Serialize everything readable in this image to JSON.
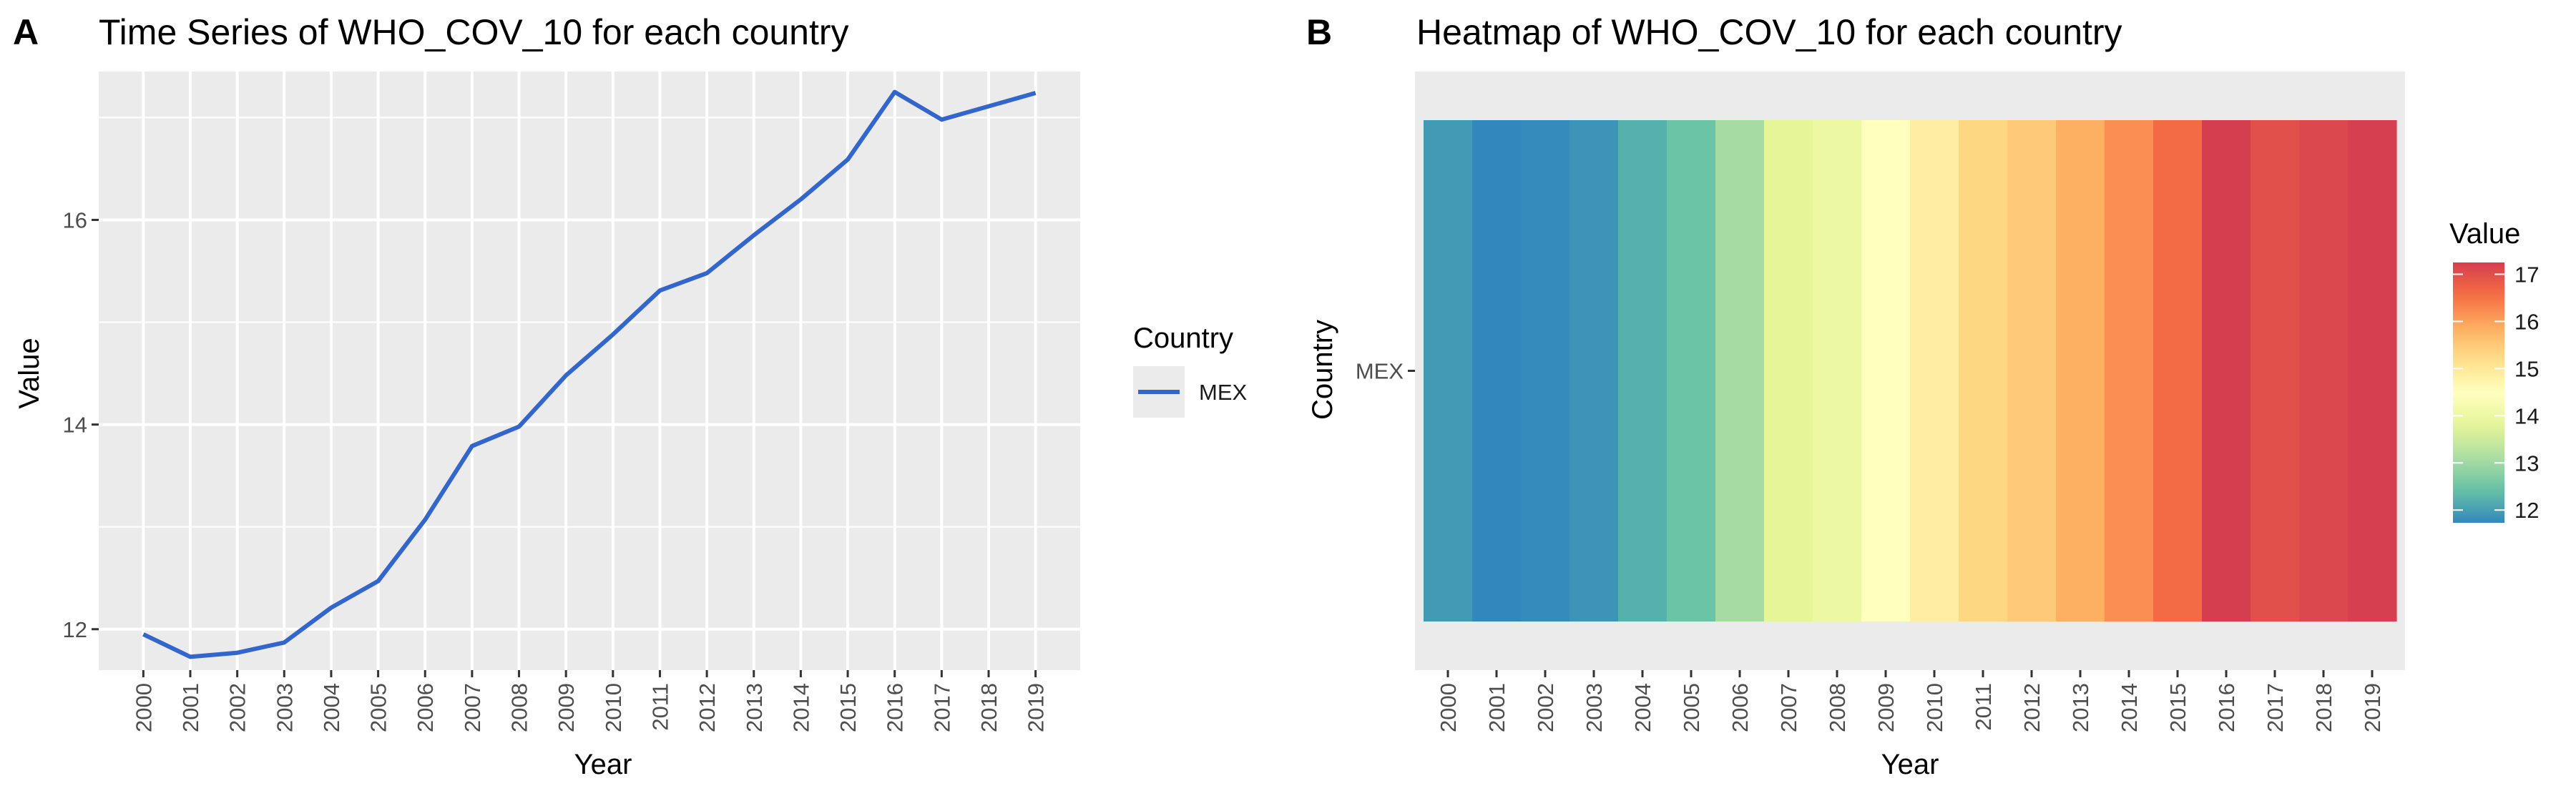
{
  "panels": [
    {
      "letter": "A",
      "title": "Time Series of WHO_COV_10 for each country"
    },
    {
      "letter": "B",
      "title": "Heatmap of WHO_COV_10 for each country"
    }
  ],
  "colors": {
    "line": "#3366CC",
    "panel_bg": "#EBEBEB",
    "grid": "#FFFFFF",
    "heatmap_palette": [
      "#3288BD",
      "#66C2A5",
      "#ABDDA4",
      "#E6F598",
      "#FFFFBF",
      "#FEE08B",
      "#FDAE61",
      "#F46D43",
      "#D53E4F"
    ]
  },
  "chart_data": [
    {
      "type": "line",
      "title": "Time Series of WHO_COV_10 for each country",
      "xlabel": "Year",
      "ylabel": "Value",
      "x": [
        2000,
        2001,
        2002,
        2003,
        2004,
        2005,
        2006,
        2007,
        2008,
        2009,
        2010,
        2011,
        2012,
        2013,
        2014,
        2015,
        2016,
        2017,
        2018,
        2019
      ],
      "x_tick_labels": [
        "2000",
        "2001",
        "2002",
        "2003",
        "2004",
        "2005",
        "2006",
        "2007",
        "2008",
        "2009",
        "2010",
        "2011",
        "2012",
        "2013",
        "2014",
        "2015",
        "2016",
        "2017",
        "2018",
        "2019"
      ],
      "series": [
        {
          "name": "MEX",
          "values": [
            11.95,
            11.73,
            11.77,
            11.87,
            12.21,
            12.47,
            13.07,
            13.79,
            13.98,
            14.48,
            14.88,
            15.31,
            15.48,
            15.85,
            16.2,
            16.59,
            17.25,
            16.98,
            17.11,
            17.24
          ]
        }
      ],
      "ylim": [
        11.6,
        17.45
      ],
      "y_ticks": [
        12,
        14,
        16
      ],
      "y_tick_labels": [
        "12",
        "14",
        "16"
      ],
      "legend": {
        "title": "Country",
        "position": "right"
      },
      "grid": true
    },
    {
      "type": "heatmap",
      "title": "Heatmap of WHO_COV_10 for each country",
      "xlabel": "Year",
      "ylabel": "Country",
      "x_tick_labels": [
        "2000",
        "2001",
        "2002",
        "2003",
        "2004",
        "2005",
        "2006",
        "2007",
        "2008",
        "2009",
        "2010",
        "2011",
        "2012",
        "2013",
        "2014",
        "2015",
        "2016",
        "2017",
        "2018",
        "2019"
      ],
      "y_tick_labels": [
        "MEX"
      ],
      "values": [
        [
          11.95,
          11.73,
          11.77,
          11.87,
          12.21,
          12.47,
          13.07,
          13.79,
          13.98,
          14.48,
          14.88,
          15.31,
          15.48,
          15.85,
          16.2,
          16.59,
          17.25,
          16.98,
          17.11,
          17.24
        ]
      ],
      "color_range": [
        11.73,
        17.25
      ],
      "legend": {
        "title": "Value",
        "position": "right",
        "ticks": [
          12,
          13,
          14,
          15,
          16,
          17
        ],
        "tick_labels": [
          "12",
          "13",
          "14",
          "15",
          "16",
          "17"
        ]
      },
      "grid": true
    }
  ]
}
